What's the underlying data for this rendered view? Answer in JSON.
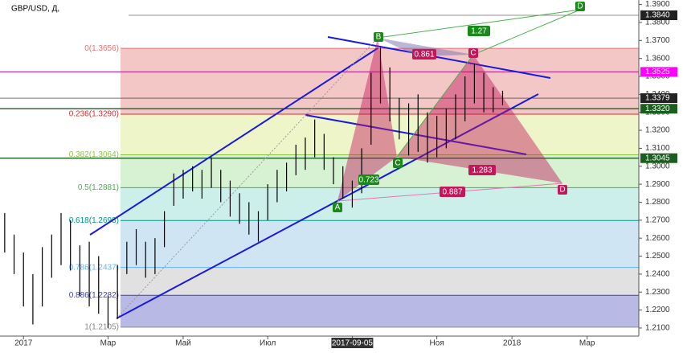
{
  "chart_data": {
    "type": "range_bar",
    "title": "GBP/USD, Д,",
    "categories": [
      null,
      null,
      "2017",
      null,
      null,
      null,
      null,
      null,
      null,
      null,
      null,
      "Мар",
      null,
      null,
      null,
      null,
      null,
      null,
      null,
      "Май",
      null,
      null,
      null,
      null,
      null,
      null,
      null,
      null,
      "Июл",
      null,
      null,
      null,
      null,
      null,
      null,
      null,
      null,
      "2017-09-05",
      null,
      null,
      null,
      null,
      null,
      null,
      null,
      null,
      "Ноя",
      null,
      null,
      null,
      null,
      null,
      null,
      null,
      "2018",
      null,
      null,
      null,
      null,
      null,
      null,
      null,
      "Мар",
      null,
      null,
      null,
      null,
      null
    ],
    "series": [
      {
        "color": "#000000",
        "high": [
          1.274,
          1.262,
          1.252,
          1.24,
          1.255,
          1.262,
          1.274,
          1.27,
          1.256,
          1.258,
          1.25,
          1.228,
          1.245,
          1.258,
          1.265,
          1.258,
          1.26,
          1.275,
          1.296,
          1.298,
          1.3,
          1.298,
          1.305,
          1.298,
          1.292,
          1.285,
          1.28,
          1.275,
          1.29,
          1.298,
          1.302,
          1.312,
          1.316,
          1.326,
          1.318,
          1.305,
          1.3,
          1.292,
          1.31,
          1.352,
          1.366,
          1.355,
          1.338,
          1.335,
          1.34,
          1.33,
          1.328,
          1.332,
          1.34,
          1.35,
          1.357,
          1.352,
          1.344,
          1.342,
          null,
          null,
          null,
          null,
          null,
          null,
          null,
          null,
          null,
          null,
          null,
          null,
          null,
          null
        ],
        "low": [
          1.252,
          1.24,
          1.222,
          1.212,
          1.222,
          1.238,
          1.245,
          1.242,
          1.228,
          1.222,
          1.218,
          1.21,
          1.215,
          1.24,
          1.245,
          1.238,
          1.24,
          1.255,
          1.278,
          1.282,
          1.286,
          1.282,
          1.288,
          1.28,
          1.272,
          1.268,
          1.262,
          1.258,
          1.27,
          1.28,
          1.286,
          1.295,
          1.298,
          1.305,
          1.298,
          1.29,
          1.282,
          1.277,
          1.285,
          1.312,
          1.335,
          1.325,
          1.315,
          1.306,
          1.308,
          1.302,
          1.305,
          1.31,
          1.315,
          1.325,
          1.335,
          1.33,
          1.33,
          1.334,
          null,
          null,
          null,
          null,
          null,
          null,
          null,
          null,
          null,
          null,
          null,
          null,
          null,
          null
        ]
      }
    ],
    "ylim": [
      1.2055,
      1.3925
    ],
    "yticks": [
      {
        "value": 1.39,
        "label": "1.3900"
      },
      {
        "value": 1.38,
        "label": "1.3800"
      },
      {
        "value": 1.37,
        "label": "1.3700"
      },
      {
        "value": 1.36,
        "label": "1.3600"
      },
      {
        "value": 1.35,
        "label": "1.3500"
      },
      {
        "value": 1.34,
        "label": "1.3400"
      },
      {
        "value": 1.33,
        "label": "1.3300"
      },
      {
        "value": 1.32,
        "label": "1.3200"
      },
      {
        "value": 1.31,
        "label": "1.3100"
      },
      {
        "value": 1.3,
        "label": "1.3000"
      },
      {
        "value": 1.29,
        "label": "1.2900"
      },
      {
        "value": 1.28,
        "label": "1.2800"
      },
      {
        "value": 1.27,
        "label": "1.2700"
      },
      {
        "value": 1.26,
        "label": "1.2600"
      },
      {
        "value": 1.25,
        "label": "1.2500"
      },
      {
        "value": 1.24,
        "label": "1.2400"
      },
      {
        "value": 1.23,
        "label": "1.2300"
      },
      {
        "value": 1.22,
        "label": "1.2200"
      },
      {
        "value": 1.21,
        "label": "1.2100"
      }
    ],
    "fib_levels": [
      {
        "label": "0(1.3656)",
        "value": 1.3656,
        "color": "#e57373",
        "fill": "#f4c7c7"
      },
      {
        "label": "0.236(1.3290)",
        "value": 1.329,
        "color": "#d32f2f",
        "fill": "#eef5c9"
      },
      {
        "label": "0.382(1.3064)",
        "value": 1.3064,
        "color": "#8bc34a",
        "fill": "#d6f2d3"
      },
      {
        "label": "0.5(1.2881)",
        "value": 1.2881,
        "color": "#4caf50",
        "fill": "#cdefe9"
      },
      {
        "label": "0.618(1.2698)",
        "value": 1.2698,
        "color": "#009688",
        "fill": "#cfe5f4"
      },
      {
        "label": "0.786(1.2437)",
        "value": 1.2437,
        "color": "#64b5f6",
        "fill": "#e1e1e1"
      },
      {
        "label": "0.886(1.2282)",
        "value": 1.2282,
        "color": "#3f3fbf",
        "fill": "#b9b9e6"
      },
      {
        "label": "1(1.2105)",
        "value": 1.2105,
        "color": "#888888",
        "fill": null
      }
    ],
    "price_labels": [
      {
        "value": 1.384,
        "label": "1.3840",
        "color": "#222222"
      },
      {
        "value": 1.3525,
        "label": "1.3525",
        "color": "#ff00ff"
      },
      {
        "value": 1.3379,
        "label": "1.3379",
        "color": "#222222"
      },
      {
        "value": 1.332,
        "label": "1.3320",
        "color": "#1b5e20"
      },
      {
        "value": 1.3045,
        "label": "1.3045",
        "color": "#1b5e20"
      }
    ],
    "points": [
      "B",
      "C",
      "A",
      "D",
      "C",
      "D"
    ],
    "ratios": [
      "0.861",
      "1.27",
      "0.887",
      "1.283",
      "0.723"
    ]
  }
}
